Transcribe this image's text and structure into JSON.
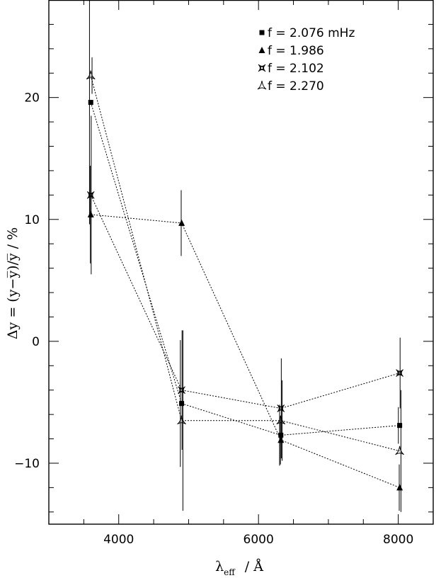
{
  "chart_data": {
    "type": "scatter",
    "xlabel_main": "λ",
    "xlabel_sub": "eff",
    "xlabel_unit": "/ Å",
    "ylabel": "Δy = (y−y̅)/y̅ / %",
    "xlim": [
      3000,
      8500
    ],
    "ylim": [
      -15,
      28
    ],
    "xticks": [
      4000,
      6000,
      8000
    ],
    "yticks": [
      -10,
      0,
      10,
      20
    ],
    "grid": false,
    "legend_position": "top-right",
    "line_style": "dotted",
    "series": [
      {
        "name": "f = 2.076 mHz",
        "marker": "square",
        "points": [
          {
            "x": 3600,
            "y": 19.6,
            "err": 10
          },
          {
            "x": 4900,
            "y": -5.1,
            "err": 5.2
          },
          {
            "x": 6320,
            "y": -7.7,
            "err": 2.5
          },
          {
            "x": 8020,
            "y": -6.9,
            "err": 1.5
          }
        ]
      },
      {
        "name": "f = 1.986",
        "marker": "triangle",
        "points": [
          {
            "x": 3600,
            "y": 10.4,
            "err": 4
          },
          {
            "x": 4900,
            "y": 9.7,
            "err": 2.7
          },
          {
            "x": 6320,
            "y": -8.1,
            "err": 2
          },
          {
            "x": 8020,
            "y": -12.0,
            "err": 1.9
          }
        ]
      },
      {
        "name": "f = 2.102",
        "marker": "star",
        "points": [
          {
            "x": 3600,
            "y": 12.0,
            "err": 6.5
          },
          {
            "x": 4900,
            "y": -4.0,
            "err": 4.9
          },
          {
            "x": 6320,
            "y": -5.5,
            "err": 4.1
          },
          {
            "x": 8020,
            "y": -2.6,
            "err": 2.9
          }
        ]
      },
      {
        "name": "f = 2.270",
        "marker": "open-triangle",
        "points": [
          {
            "x": 3600,
            "y": 21.8,
            "err": 1.5
          },
          {
            "x": 4900,
            "y": -6.5,
            "err": 7.4
          },
          {
            "x": 6320,
            "y": -6.5,
            "err": 3.3
          },
          {
            "x": 8020,
            "y": -9.0,
            "err": 5
          }
        ]
      }
    ]
  }
}
